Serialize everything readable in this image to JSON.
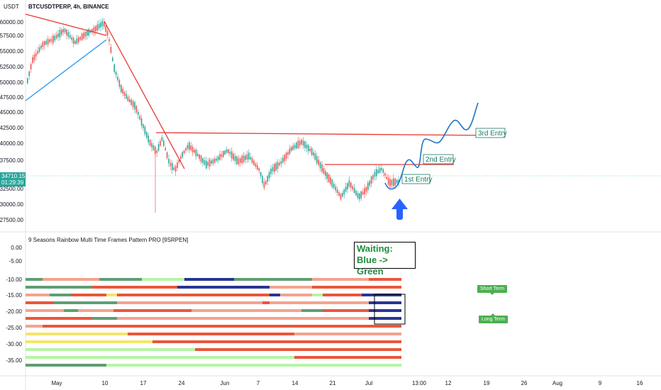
{
  "symbol_title": "BTCUSDTPERP, 4h, BINANCE",
  "currency": "USDT",
  "indicator_title": "9 Seasons Rainbow Multi Time Frames Pattern PRO [9SRPEN]",
  "current_price": "34710.15",
  "countdown": "01:29:39",
  "price_axis": [
    "60000.00",
    "57500.00",
    "55000.00",
    "52500.00",
    "50000.00",
    "47500.00",
    "45000.00",
    "42500.00",
    "40000.00",
    "37500.00",
    "32500.00",
    "30000.00",
    "27500.00"
  ],
  "indicator_axis": [
    "0.00",
    "-5.00",
    "-10.00",
    "-15.00",
    "-20.00",
    "-25.00",
    "-30.00",
    "-35.00"
  ],
  "time_axis": [
    "May",
    "10",
    "17",
    "24",
    "Jun",
    "7",
    "14",
    "21",
    "Jul",
    "13:00",
    "12",
    "19",
    "26",
    "Aug",
    "9",
    "16"
  ],
  "annotations": {
    "first_entry": "1st Entry",
    "second_entry": "2nd Entry",
    "third_entry": "3rd Entry",
    "waiting_line1": "Waiting:",
    "waiting_line2": "Blue -> Green",
    "short_term": "Short Term",
    "long_term": "Long Term"
  },
  "colors": {
    "up": "#26a69a",
    "down": "#ef5350",
    "trend_red": "#e53935",
    "trend_blue": "#2196f3",
    "arrow_blue": "#2962ff",
    "band_dark_red": "#e9573a",
    "band_light_red": "#f4a38d",
    "band_green": "#5f9e74",
    "band_light_green": "#b5f5a5",
    "band_yellow": "#f5e46a",
    "band_navy": "#283593"
  }
}
